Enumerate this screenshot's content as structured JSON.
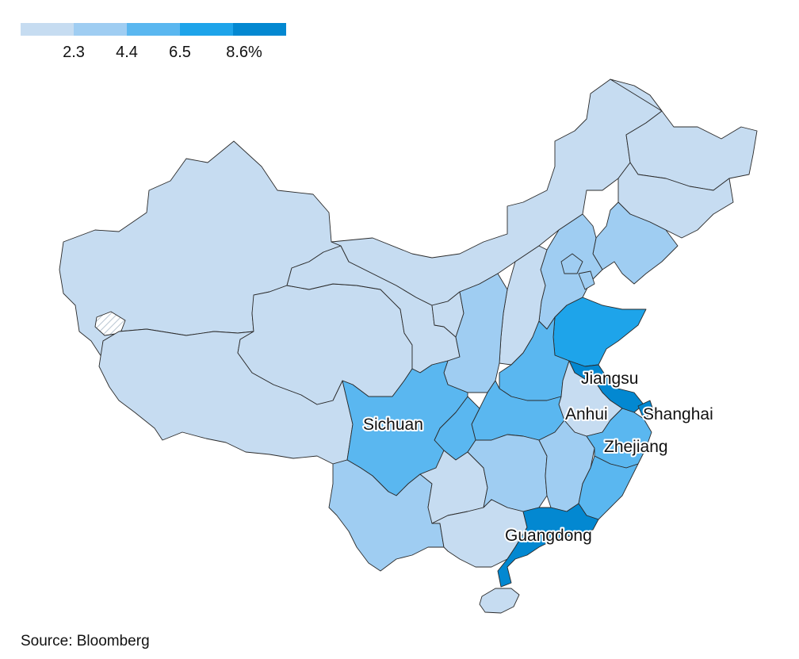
{
  "legend": {
    "ticks": [
      "2.3",
      "4.4",
      "6.5",
      "8.6%"
    ],
    "colors": [
      "#c6dcf1",
      "#9fcdf2",
      "#5ab7f0",
      "#1ea4ea",
      "#0388d1"
    ]
  },
  "labels": {
    "jiangsu": "Jiangsu",
    "anhui": "Anhui",
    "shanghai": "Shanghai",
    "zhejiang": "Zhejiang",
    "sichuan": "Sichuan",
    "guangdong": "Guangdong"
  },
  "source": "Source: Bloomberg"
}
